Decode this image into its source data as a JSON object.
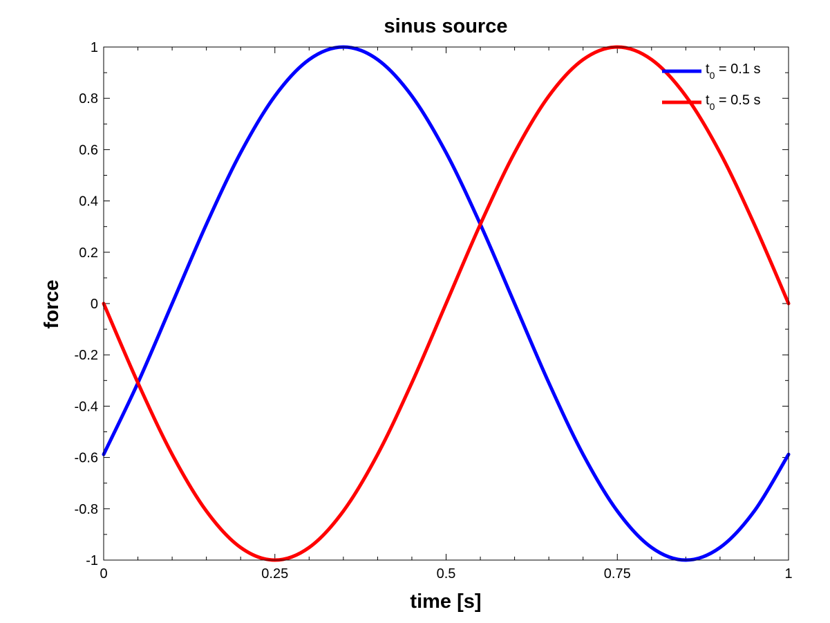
{
  "chart_data": {
    "type": "line",
    "title": "sinus source",
    "xlabel": "time [s]",
    "ylabel": "force",
    "xlim": [
      0,
      1
    ],
    "ylim": [
      -1,
      1
    ],
    "x_ticks": [
      0,
      0.25,
      0.5,
      0.75,
      1
    ],
    "x_tick_labels": [
      "0",
      "0.25",
      "0.5",
      "0.75",
      "1"
    ],
    "y_ticks": [
      -1,
      -0.8,
      -0.6,
      -0.4,
      -0.2,
      0,
      0.2,
      0.4,
      0.6,
      0.8,
      1
    ],
    "y_tick_labels": [
      "-1",
      "-0.8",
      "-0.6",
      "-0.4",
      "-0.2",
      "0",
      "0.2",
      "0.4",
      "0.6",
      "0.8",
      "1"
    ],
    "grid": false,
    "legend_position": "top-right",
    "x": [
      0,
      0.05,
      0.1,
      0.15,
      0.2,
      0.25,
      0.3,
      0.35,
      0.4,
      0.45,
      0.5,
      0.55,
      0.6,
      0.65,
      0.7,
      0.75,
      0.8,
      0.85,
      0.9,
      0.95,
      1
    ],
    "series": [
      {
        "name": "0.1 s",
        "legend_parts": [
          "t",
          "0",
          " = 0.1 s"
        ],
        "color": "#0000ff",
        "values": [
          -0.588,
          -0.309,
          0,
          0.309,
          0.588,
          0.809,
          0.951,
          1,
          0.951,
          0.809,
          0.588,
          0.309,
          0,
          -0.309,
          -0.588,
          -0.809,
          -0.951,
          -1,
          -0.951,
          -0.809,
          -0.588
        ]
      },
      {
        "name": "0.5 s",
        "legend_parts": [
          "t",
          "0",
          " = 0.5 s"
        ],
        "color": "#ff0000",
        "values": [
          0,
          -0.309,
          -0.588,
          -0.809,
          -0.951,
          -1,
          -0.951,
          -0.809,
          -0.588,
          -0.309,
          0,
          0.309,
          0.588,
          0.809,
          0.951,
          1,
          0.951,
          0.809,
          0.588,
          0.309,
          0
        ]
      }
    ]
  }
}
